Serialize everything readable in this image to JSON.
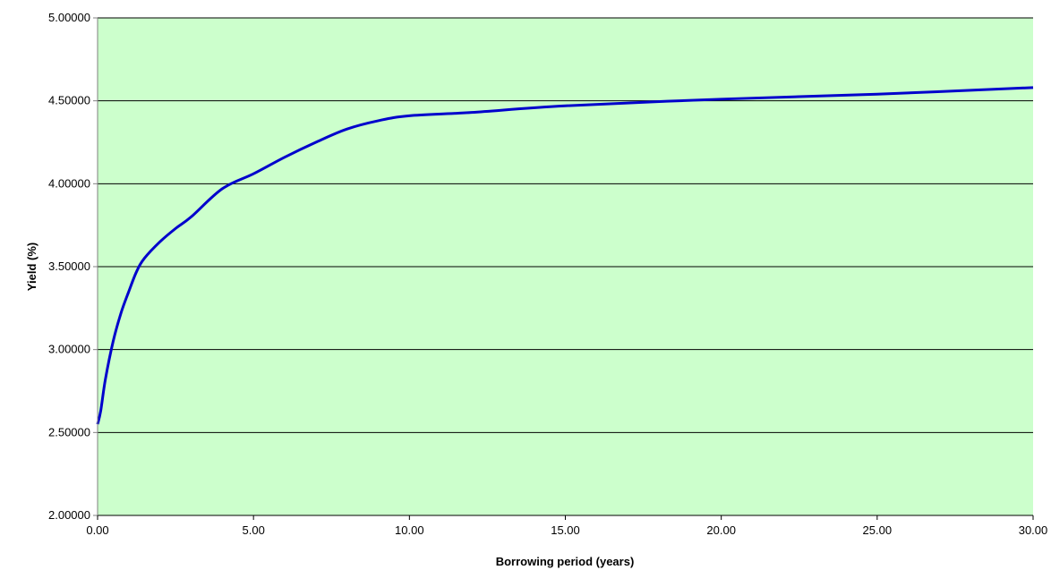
{
  "chart_data": {
    "type": "line",
    "title": "",
    "xlabel": "Borrowing period (years)",
    "ylabel": "Yield (%)",
    "xlim": [
      0,
      30
    ],
    "ylim": [
      2.0,
      5.0
    ],
    "x_ticks": [
      "0.00",
      "5.00",
      "10.00",
      "15.00",
      "20.00",
      "25.00",
      "30.00"
    ],
    "y_ticks": [
      "2.00000",
      "2.50000",
      "3.00000",
      "3.50000",
      "4.00000",
      "4.50000",
      "5.00000"
    ],
    "grid": "horizontal",
    "legend": "none",
    "plot_background": "#ccffcc",
    "series": [
      {
        "color": "#0000cc",
        "x": [
          0.0,
          0.1,
          0.25,
          0.5,
          0.75,
          1.0,
          1.25,
          1.5,
          2.0,
          2.5,
          3.0,
          4.0,
          5.0,
          6.0,
          7.0,
          8.0,
          9.0,
          10.0,
          12.0,
          15.0,
          20.0,
          25.0,
          30.0
        ],
        "y": [
          2.55,
          2.63,
          2.82,
          3.05,
          3.22,
          3.35,
          3.47,
          3.55,
          3.65,
          3.73,
          3.8,
          3.97,
          4.06,
          4.16,
          4.25,
          4.33,
          4.38,
          4.41,
          4.43,
          4.47,
          4.51,
          4.54,
          4.58
        ]
      }
    ]
  }
}
